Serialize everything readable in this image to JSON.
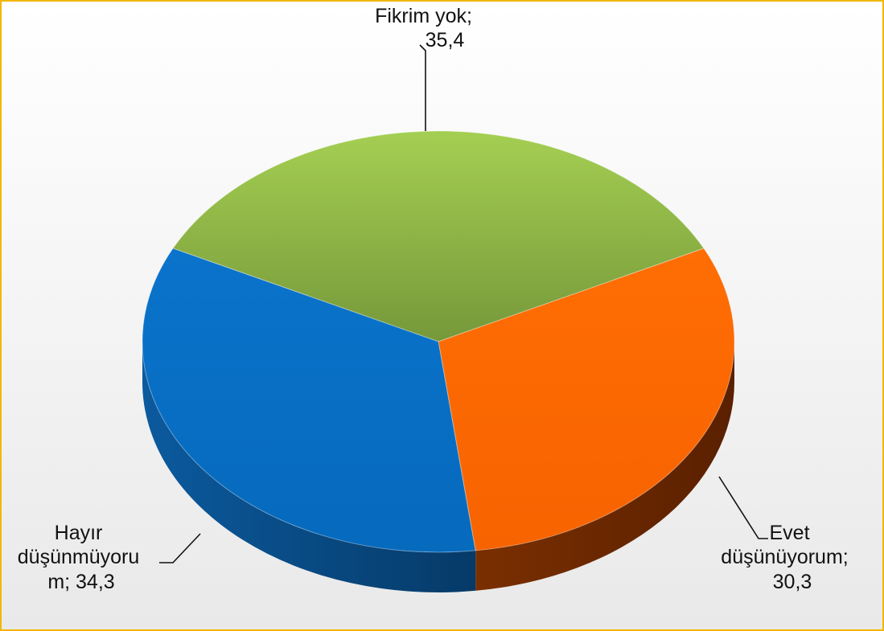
{
  "chart_data": {
    "type": "pie",
    "title": "",
    "slices": [
      {
        "name": "Fikrim yok",
        "value": 35.4,
        "color": "#8db34a",
        "label_lines": [
          "Fikrim yok;",
          "35,4"
        ]
      },
      {
        "name": "Evet düşünüyorum",
        "value": 30.3,
        "color": "#ff6a00",
        "label_lines": [
          "Evet",
          "düşünüyorum;",
          "30,3"
        ]
      },
      {
        "name": "Hayır düşünmüyorum",
        "value": 34.3,
        "color": "#0a72c9",
        "label_lines": [
          "Hayır",
          "düşünmüyoru",
          "m; 34,3"
        ]
      }
    ],
    "legend": "none",
    "style": "3d-pie"
  }
}
